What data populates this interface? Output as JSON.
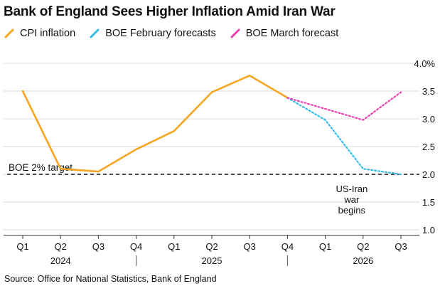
{
  "title": "Bank of England Sees Higher Inflation Amid Iran War",
  "source": "Source: Office for National Statistics, Bank of England",
  "colors": {
    "cpi": "#f6a623",
    "feb": "#33bce8",
    "mar": "#ee3fb0",
    "grid": "#d9d9d9",
    "target": "#111111"
  },
  "chart_data": {
    "type": "line",
    "title": "Bank of England Sees Higher Inflation Amid Iran War",
    "x": [
      "Q1",
      "Q2",
      "Q3",
      "Q4",
      "Q1",
      "Q2",
      "Q3",
      "Q4",
      "Q1",
      "Q2",
      "Q3"
    ],
    "year_labels": [
      {
        "label": "2024",
        "center": 1
      },
      {
        "label": "2025",
        "center": 5
      },
      {
        "label": "2026",
        "center": 9
      }
    ],
    "year_separators": [
      3,
      7
    ],
    "ylim": [
      0.9,
      4.0
    ],
    "yticks": [
      {
        "value": 4.0,
        "label": "4.0%"
      },
      {
        "value": 3.5,
        "label": "3.5"
      },
      {
        "value": 3.0,
        "label": "3.0"
      },
      {
        "value": 2.5,
        "label": "2.5"
      },
      {
        "value": 2.0,
        "label": "2.0"
      },
      {
        "value": 1.5,
        "label": "1.5"
      },
      {
        "value": 1.0,
        "label": "1.0"
      }
    ],
    "series": [
      {
        "name": "CPI inflation",
        "key": "cpi",
        "style": "solid",
        "points": [
          [
            0,
            3.5
          ],
          [
            1,
            2.1
          ],
          [
            2,
            2.05
          ],
          [
            3,
            2.45
          ],
          [
            4,
            2.78
          ],
          [
            5,
            3.48
          ],
          [
            6,
            3.78
          ],
          [
            7,
            3.38
          ]
        ]
      },
      {
        "name": "BOE February forecasts",
        "key": "feb",
        "style": "dotted",
        "points": [
          [
            7,
            3.38
          ],
          [
            8,
            2.98
          ],
          [
            9,
            2.1
          ],
          [
            10,
            2.0
          ]
        ]
      },
      {
        "name": "BOE March forecast",
        "key": "mar",
        "style": "dotted",
        "points": [
          [
            7,
            3.38
          ],
          [
            9,
            2.98
          ],
          [
            10,
            3.48
          ]
        ]
      }
    ],
    "reference_line": {
      "value": 2.0,
      "label": "BOE 2% target"
    },
    "annotation": {
      "lines": [
        "US-Iran",
        "war",
        "begins"
      ],
      "anchor_x": 8.7,
      "anchor_y": 1.68
    }
  }
}
